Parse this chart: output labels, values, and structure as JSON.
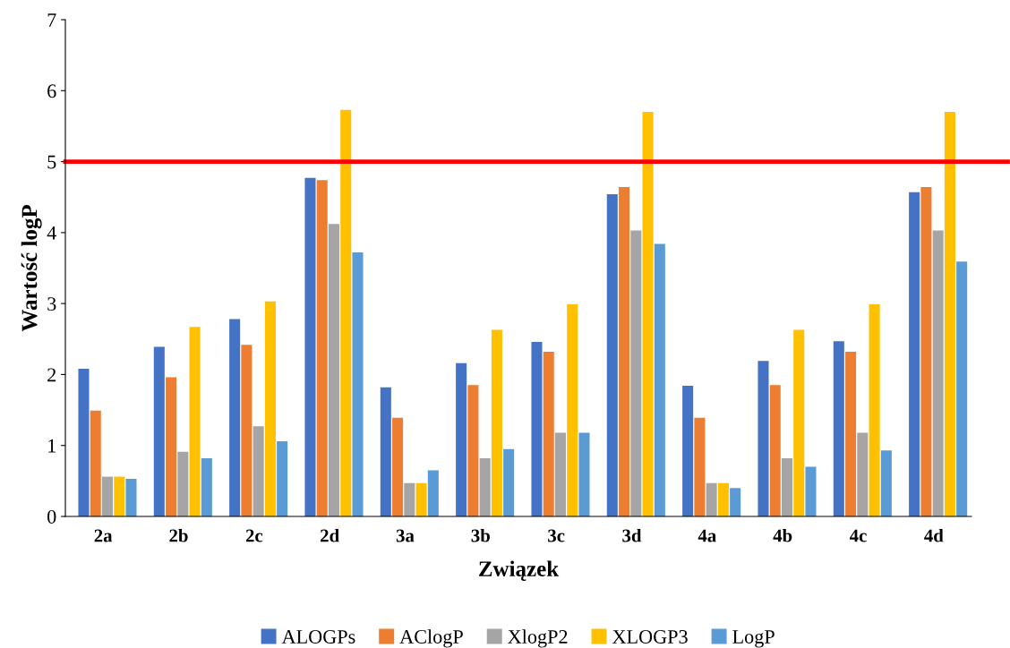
{
  "chart_data": {
    "type": "bar",
    "xlabel": "Związek",
    "ylabel": "Wartość logP",
    "categories": [
      "2a",
      "2b",
      "2c",
      "2d",
      "3a",
      "3b",
      "3c",
      "3d",
      "4a",
      "4b",
      "4c",
      "4d"
    ],
    "series": [
      {
        "name": "ALOGPs",
        "color": "#4472c4",
        "values": [
          2.08,
          2.39,
          2.78,
          4.77,
          1.82,
          2.16,
          2.46,
          4.54,
          1.84,
          2.19,
          2.47,
          4.57
        ]
      },
      {
        "name": "AClogP",
        "color": "#ed7d31",
        "values": [
          1.49,
          1.96,
          2.42,
          4.74,
          1.39,
          1.85,
          2.32,
          4.64,
          1.39,
          1.85,
          2.32,
          4.64
        ]
      },
      {
        "name": "XlogP2",
        "color": "#a5a5a5",
        "values": [
          0.56,
          0.91,
          1.27,
          4.12,
          0.47,
          0.82,
          1.18,
          4.03,
          0.47,
          0.82,
          1.18,
          4.03
        ]
      },
      {
        "name": "XLOGP3",
        "color": "#ffc000",
        "values": [
          0.56,
          2.67,
          3.03,
          5.73,
          0.47,
          2.63,
          2.99,
          5.7,
          0.47,
          2.63,
          2.99,
          5.7
        ]
      },
      {
        "name": "LogP",
        "color": "#5b9bd5",
        "values": [
          0.53,
          0.82,
          1.06,
          3.72,
          0.65,
          0.95,
          1.18,
          3.84,
          0.4,
          0.7,
          0.93,
          3.59
        ]
      }
    ],
    "ylim": [
      0,
      7
    ],
    "yticks": [
      0,
      1,
      2,
      3,
      4,
      5,
      6,
      7
    ],
    "ref_lines": [
      {
        "axis": "y",
        "value": 5,
        "color": "#ff0000"
      }
    ],
    "grid": false,
    "legend": "bottom"
  }
}
